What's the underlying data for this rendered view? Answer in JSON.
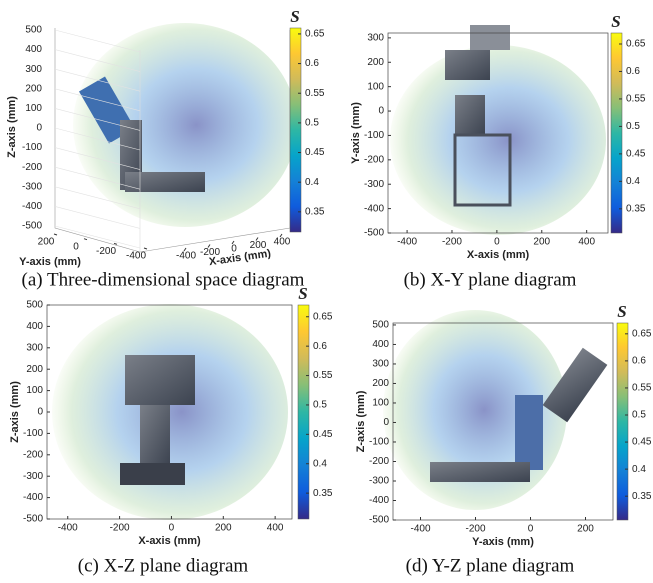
{
  "chart_data": [
    {
      "type": "scatter3d",
      "title": "(a) Three-dimensional space diagram",
      "xlabel": "X-axis (mm)",
      "ylabel": "Y-axis (mm)",
      "zlabel": "Z-axis (mm)",
      "xticks": [
        -400,
        -200,
        0,
        200,
        400
      ],
      "yticks": [
        200,
        0,
        -200,
        -400
      ],
      "zticks": [
        500,
        400,
        300,
        200,
        100,
        0,
        -100,
        -200,
        -300,
        -400,
        -500
      ],
      "xlim": [
        -400,
        400
      ],
      "ylim": [
        200,
        -400
      ],
      "zlim": [
        -500,
        500
      ],
      "colorbar": {
        "label": "S",
        "lim": [
          0.316,
          0.66
        ],
        "ticks": [
          0.65,
          0.6,
          0.55,
          0.5,
          0.45,
          0.4,
          0.35
        ]
      }
    },
    {
      "type": "scatter",
      "title": "(b) X-Y plane diagram",
      "xlabel": "X-axis (mm)",
      "ylabel": "Y-axis (mm)",
      "xlim": [
        -485,
        495
      ],
      "ylim": [
        -500,
        320
      ],
      "xticks": [
        -400,
        -200,
        0,
        200,
        400
      ],
      "yticks": [
        300,
        200,
        100,
        0,
        -100,
        -200,
        -300,
        -400,
        -500
      ],
      "colorbar": {
        "label": "S",
        "lim": [
          0.306,
          0.67
        ],
        "ticks": [
          0.65,
          0.6,
          0.55,
          0.5,
          0.45,
          0.4,
          0.35
        ]
      }
    },
    {
      "type": "scatter",
      "title": "(c) X-Z plane diagram",
      "xlabel": "X-axis (mm)",
      "ylabel": "Z-axis (mm)",
      "xlim": [
        -480,
        465
      ],
      "ylim": [
        -500,
        500
      ],
      "xticks": [
        -400,
        -200,
        0,
        200,
        400
      ],
      "yticks": [
        500,
        400,
        300,
        200,
        100,
        0,
        -100,
        -200,
        -300,
        -400,
        -500
      ],
      "colorbar": {
        "label": "S",
        "lim": [
          0.306,
          0.67
        ],
        "ticks": [
          0.65,
          0.6,
          0.55,
          0.5,
          0.45,
          0.4,
          0.35
        ]
      }
    },
    {
      "type": "scatter",
      "title": "(d) Y-Z plane diagram",
      "xlabel": "Y-axis (mm)",
      "ylabel": "Z-axis (mm)",
      "xlim": [
        -500,
        300
      ],
      "ylim": [
        -500,
        510
      ],
      "xticks": [
        -400,
        -200,
        0,
        200
      ],
      "yticks": [
        500,
        400,
        300,
        200,
        100,
        0,
        -100,
        -200,
        -300,
        -400,
        -500
      ],
      "colorbar": {
        "label": "S",
        "lim": [
          0.306,
          0.67
        ],
        "ticks": [
          0.65,
          0.6,
          0.55,
          0.5,
          0.45,
          0.4,
          0.35
        ]
      }
    }
  ],
  "colormap": [
    "#352a87",
    "#0f5cdd",
    "#1481d6",
    "#06a4ca",
    "#2eb7a4",
    "#87bf77",
    "#d1bb59",
    "#fec832",
    "#f9fb0e"
  ]
}
